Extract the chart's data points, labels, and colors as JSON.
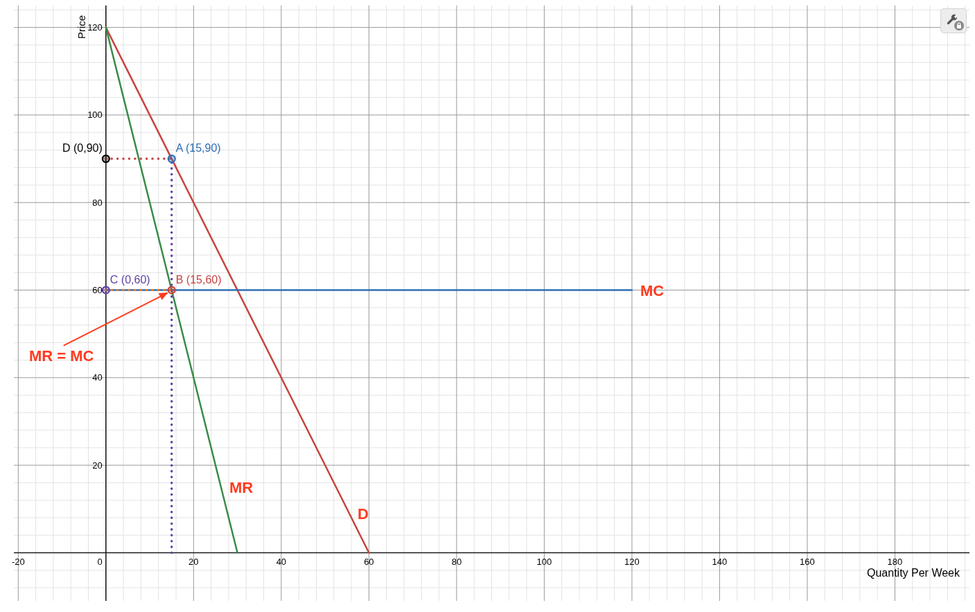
{
  "chart_data": {
    "type": "line",
    "xlabel": "Quantity Per Week",
    "ylabel": "Price",
    "xlim": [
      -21,
      197
    ],
    "ylim": [
      -11,
      125
    ],
    "xticks": [
      -20,
      {
        "value": -16,
        "label": null
      },
      {
        "value": -12,
        "label": null
      },
      {
        "value": -8,
        "label": null
      },
      {
        "value": -4,
        "label": null
      },
      0,
      {
        "value": 4,
        "label": null
      },
      {
        "value": 8,
        "label": null
      },
      {
        "value": 12,
        "label": null
      },
      {
        "value": 16,
        "label": null
      },
      20,
      {
        "value": 24,
        "label": null
      },
      {
        "value": 28,
        "label": null
      },
      {
        "value": 32,
        "label": null
      },
      {
        "value": 36,
        "label": null
      },
      40,
      {
        "value": 44,
        "label": null
      },
      {
        "value": 48,
        "label": null
      },
      {
        "value": 52,
        "label": null
      },
      {
        "value": 56,
        "label": null
      },
      60,
      {
        "value": 64,
        "label": null
      },
      {
        "value": 68,
        "label": null
      },
      {
        "value": 72,
        "label": null
      },
      {
        "value": 76,
        "label": null
      },
      80,
      {
        "value": 84,
        "label": null
      },
      {
        "value": 88,
        "label": null
      },
      {
        "value": 92,
        "label": null
      },
      {
        "value": 96,
        "label": null
      },
      100,
      {
        "value": 104,
        "label": null
      },
      {
        "value": 108,
        "label": null
      },
      {
        "value": 112,
        "label": null
      },
      {
        "value": 116,
        "label": null
      },
      120,
      {
        "value": 124,
        "label": null
      },
      {
        "value": 128,
        "label": null
      },
      {
        "value": 132,
        "label": null
      },
      {
        "value": 136,
        "label": null
      },
      140,
      {
        "value": 144,
        "label": null
      },
      {
        "value": 148,
        "label": null
      },
      {
        "value": 152,
        "label": null
      },
      {
        "value": 156,
        "label": null
      },
      160,
      {
        "value": 164,
        "label": null
      },
      {
        "value": 168,
        "label": null
      },
      {
        "value": 172,
        "label": null
      },
      {
        "value": 176,
        "label": null
      },
      180,
      {
        "value": 184,
        "label": null
      },
      {
        "value": 188,
        "label": null
      },
      {
        "value": 192,
        "label": null
      },
      {
        "value": 196,
        "label": null
      }
    ],
    "yticks": [
      {
        "value": -8,
        "label": null
      },
      {
        "value": -4,
        "label": null
      },
      {
        "value": 0,
        "label": null
      },
      {
        "value": 4,
        "label": null
      },
      {
        "value": 8,
        "label": null
      },
      {
        "value": 12,
        "label": null
      },
      {
        "value": 16,
        "label": null
      },
      20,
      {
        "value": 24,
        "label": null
      },
      {
        "value": 28,
        "label": null
      },
      {
        "value": 32,
        "label": null
      },
      {
        "value": 36,
        "label": null
      },
      40,
      {
        "value": 44,
        "label": null
      },
      {
        "value": 48,
        "label": null
      },
      {
        "value": 52,
        "label": null
      },
      {
        "value": 56,
        "label": null
      },
      60,
      {
        "value": 64,
        "label": null
      },
      {
        "value": 68,
        "label": null
      },
      {
        "value": 72,
        "label": null
      },
      {
        "value": 76,
        "label": null
      },
      80,
      {
        "value": 84,
        "label": null
      },
      {
        "value": 88,
        "label": null
      },
      {
        "value": 92,
        "label": null
      },
      {
        "value": 96,
        "label": null
      },
      100,
      {
        "value": 104,
        "label": null
      },
      {
        "value": 108,
        "label": null
      },
      {
        "value": 112,
        "label": null
      },
      {
        "value": 116,
        "label": null
      },
      120,
      {
        "value": 124,
        "label": null
      }
    ],
    "grid": true,
    "series": [
      {
        "type": "line",
        "color": "#c74440",
        "x": [
          0,
          60
        ],
        "values": [
          120,
          0
        ]
      },
      {
        "type": "line",
        "color": "#388c46",
        "x": [
          0,
          30
        ],
        "values": [
          120,
          0
        ]
      },
      {
        "type": "line",
        "color": "#2d70b3",
        "x": [
          0,
          120
        ],
        "values": [
          60,
          60
        ]
      },
      {
        "type": "line",
        "color": "#c74440",
        "line_style": "dotted",
        "x": [
          0,
          15
        ],
        "values": [
          90,
          90
        ]
      },
      {
        "type": "line",
        "color": "#6042a6",
        "line_style": "dotted",
        "x": [
          15,
          15
        ],
        "values": [
          0,
          90
        ]
      },
      {
        "type": "line",
        "color": "#fa7e19",
        "line_style": "dotted",
        "x": [
          0,
          15
        ],
        "values": [
          60,
          60
        ]
      },
      {
        "type": "scatter",
        "x": [
          0,
          15,
          0,
          15
        ],
        "values": [
          90,
          90,
          60,
          60
        ],
        "colors": [
          "#000000",
          "#2d70b3",
          "#6042a6",
          "#c74440"
        ]
      }
    ],
    "annotations": [
      {
        "text": "D (0,90)",
        "x": 0,
        "y": 90
      },
      {
        "text": "A (15,90)",
        "x": 15,
        "y": 90
      },
      {
        "text": "C (0,60)",
        "x": 0,
        "y": 60
      },
      {
        "text": "B (15,60)",
        "x": 15,
        "y": 60
      },
      {
        "text": "MC",
        "x": 120,
        "y": 60
      },
      {
        "text": "MR",
        "x": 26.25,
        "y": 15
      },
      {
        "text": "D",
        "x": 55.5,
        "y": 9
      },
      {
        "text": "MR = MC",
        "x": 15,
        "y": 60
      }
    ]
  }
}
